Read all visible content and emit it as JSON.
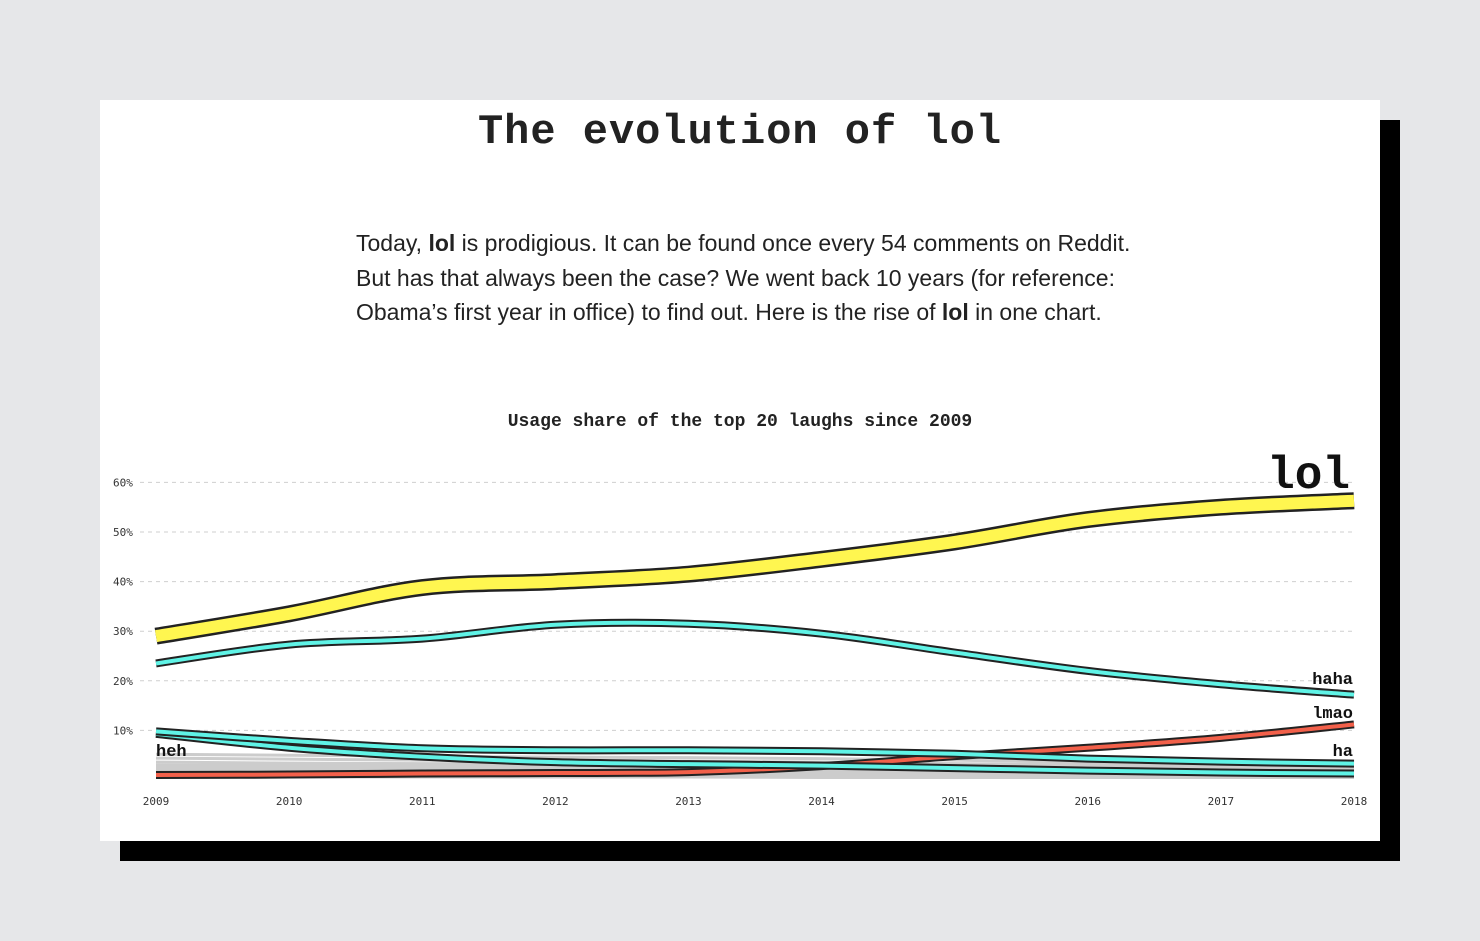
{
  "title": "The evolution of lol",
  "intro": {
    "p1": "Today, ",
    "b1": "lol",
    "p2": " is prodigious. It can be found once every 54 comments on Reddit. But has that always been the case? We went back 10 years (for reference: Obama’s first year in office) to find out. Here is the rise of ",
    "b2": "lol",
    "p3": " in one chart."
  },
  "colors": {
    "background": "#e6e7e9",
    "lol": "#fff650",
    "haha": "#5ff3e6",
    "lmao": "#f2604a",
    "other": "#cccccc",
    "outline": "#222222"
  },
  "chart_data": {
    "type": "line",
    "title": "Usage share of the top 20 laughs since 2009",
    "x": [
      2009,
      2010,
      2011,
      2012,
      2013,
      2014,
      2015,
      2016,
      2017,
      2018
    ],
    "ylim": [
      0,
      60
    ],
    "yticks": [
      "10%",
      "20%",
      "30%",
      "40%",
      "50%",
      "60%"
    ],
    "ytick_values": [
      10,
      20,
      30,
      40,
      50,
      60
    ],
    "grid": true,
    "series": [
      {
        "name": "lol",
        "color": "#fff650",
        "values": [
          29,
          33.5,
          38.8,
          40,
          41.5,
          44.5,
          48,
          52.5,
          55,
          56.3
        ]
      },
      {
        "name": "haha",
        "color": "#5ff3e6",
        "values": [
          23.5,
          27.3,
          28.5,
          31.3,
          31.5,
          29.5,
          25.7,
          22,
          19.3,
          17.2
        ]
      },
      {
        "name": "ha",
        "color": "#5ff3e6",
        "values": [
          9.8,
          7.9,
          6.4,
          6,
          6,
          5.8,
          5.3,
          4.3,
          3.7,
          3.3
        ]
      },
      {
        "name": "heh",
        "color": "#5ff3e6",
        "values": [
          9.3,
          6.5,
          4.7,
          3.6,
          3.2,
          2.9,
          2.4,
          1.9,
          1.5,
          1.3
        ]
      },
      {
        "name": "lmao",
        "color": "#f2604a",
        "values": [
          1,
          1.1,
          1.3,
          1.4,
          1.6,
          2.8,
          4.8,
          6.5,
          8.5,
          11.2
        ]
      }
    ],
    "other_series": [
      [
        5.2,
        5,
        4.8,
        4.6,
        4.5,
        4.3,
        4,
        3.5,
        3,
        2.6
      ],
      [
        4.4,
        4.2,
        4,
        3.9,
        3.8,
        3.6,
        3.3,
        3,
        2.6,
        2.3
      ],
      [
        3.6,
        3.4,
        3.3,
        3.2,
        3.1,
        2.9,
        2.7,
        2.4,
        2.1,
        1.9
      ],
      [
        3,
        2.9,
        2.8,
        2.7,
        2.6,
        2.5,
        2.3,
        2.1,
        1.8,
        1.6
      ],
      [
        2.5,
        2.4,
        2.3,
        2.2,
        2.1,
        2,
        1.9,
        1.7,
        1.5,
        1.3
      ],
      [
        2,
        1.9,
        1.8,
        1.8,
        1.7,
        1.6,
        1.5,
        1.4,
        1.2,
        1.1
      ],
      [
        1.5,
        1.4,
        1.4,
        1.3,
        1.3,
        1.2,
        1.1,
        1,
        0.9,
        0.8
      ],
      [
        1,
        1,
        0.9,
        0.9,
        0.9,
        0.8,
        0.8,
        0.7,
        0.7,
        0.6
      ],
      [
        0.6,
        0.6,
        0.6,
        0.6,
        0.6,
        0.5,
        0.5,
        0.5,
        0.5,
        0.5
      ]
    ]
  }
}
